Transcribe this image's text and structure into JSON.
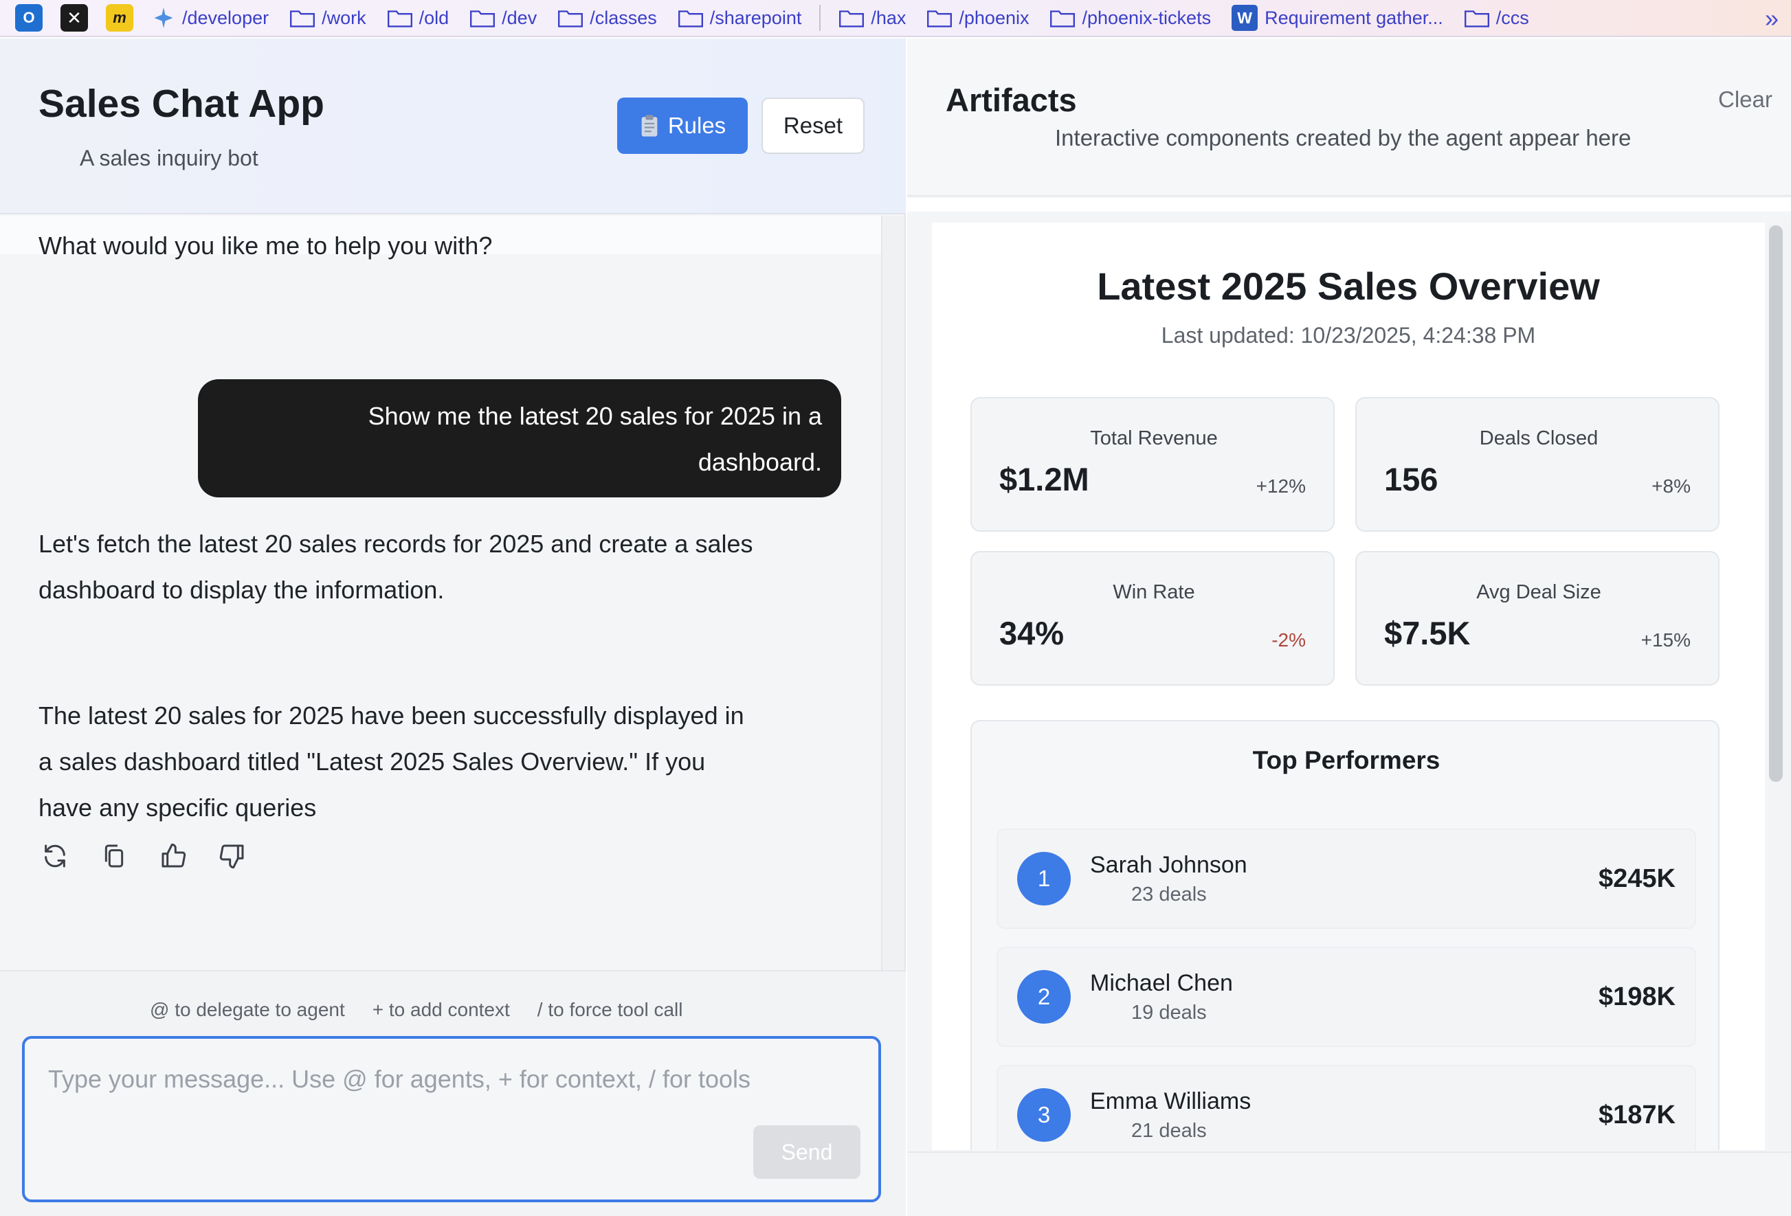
{
  "bookmarks": {
    "items": [
      {
        "label": "/developer",
        "icon": "sparkle-icon"
      },
      {
        "label": "/work",
        "icon": "folder-icon"
      },
      {
        "label": "/old",
        "icon": "folder-icon"
      },
      {
        "label": "/dev",
        "icon": "folder-icon"
      },
      {
        "label": "/classes",
        "icon": "folder-icon"
      },
      {
        "label": "/sharepoint",
        "icon": "folder-icon"
      },
      {
        "label": "/hax",
        "icon": "folder-icon"
      },
      {
        "label": "/phoenix",
        "icon": "folder-icon"
      },
      {
        "label": "/phoenix-tickets",
        "icon": "folder-icon"
      },
      {
        "label": "Requirement gather...",
        "icon": "word-icon"
      },
      {
        "label": "/ccs",
        "icon": "folder-icon"
      }
    ],
    "more": "»"
  },
  "chat": {
    "title": "Sales Chat App",
    "subtitle": "A sales inquiry bot",
    "rules_label": "Rules",
    "reset_label": "Reset",
    "messages": {
      "assistant_greeting": "What would you like me to help you with?",
      "user_line1": "Show me the latest 20 sales for 2025 in a",
      "user_line2": "dashboard.",
      "assistant_plan_line1": "Let's fetch the latest 20 sales records for 2025 and create a sales",
      "assistant_plan_line2": "dashboard to display the information.",
      "assistant_result_line1": "The latest 20 sales for 2025 have been successfully displayed in",
      "assistant_result_line2": "a sales dashboard titled \"Latest 2025 Sales Overview.\" If you",
      "assistant_result_line3": "have any specific queries"
    },
    "hints": [
      "@ to delegate to agent",
      "+ to add context",
      "/ to force tool call"
    ],
    "input_placeholder": "Type your message... Use @ for agents, + for context, / for tools",
    "send_label": "Send"
  },
  "artifacts": {
    "title": "Artifacts",
    "subtitle": "Interactive components created by the agent appear here",
    "clear_label": "Clear",
    "dashboard": {
      "title": "Latest 2025 Sales Overview",
      "updated": "Last updated: 10/23/2025, 4:24:38 PM",
      "metrics": [
        {
          "label": "Total Revenue",
          "value": "$1.2M",
          "change": "+12%"
        },
        {
          "label": "Deals Closed",
          "value": "156",
          "change": "+8%"
        },
        {
          "label": "Win Rate",
          "value": "34%",
          "change": "-2%"
        },
        {
          "label": "Avg Deal Size",
          "value": "$7.5K",
          "change": "+15%"
        }
      ],
      "top_performers": {
        "title": "Top Performers",
        "rows": [
          {
            "rank": "1",
            "name": "Sarah Johnson",
            "deals": "23 deals",
            "amount": "$245K"
          },
          {
            "rank": "2",
            "name": "Michael Chen",
            "deals": "19 deals",
            "amount": "$198K"
          },
          {
            "rank": "3",
            "name": "Emma Williams",
            "deals": "21 deals",
            "amount": "$187K"
          }
        ]
      }
    }
  },
  "colors": {
    "accent": "#3d7be6",
    "user_bubble": "#1c1c1c",
    "negative": "#b0453a"
  }
}
